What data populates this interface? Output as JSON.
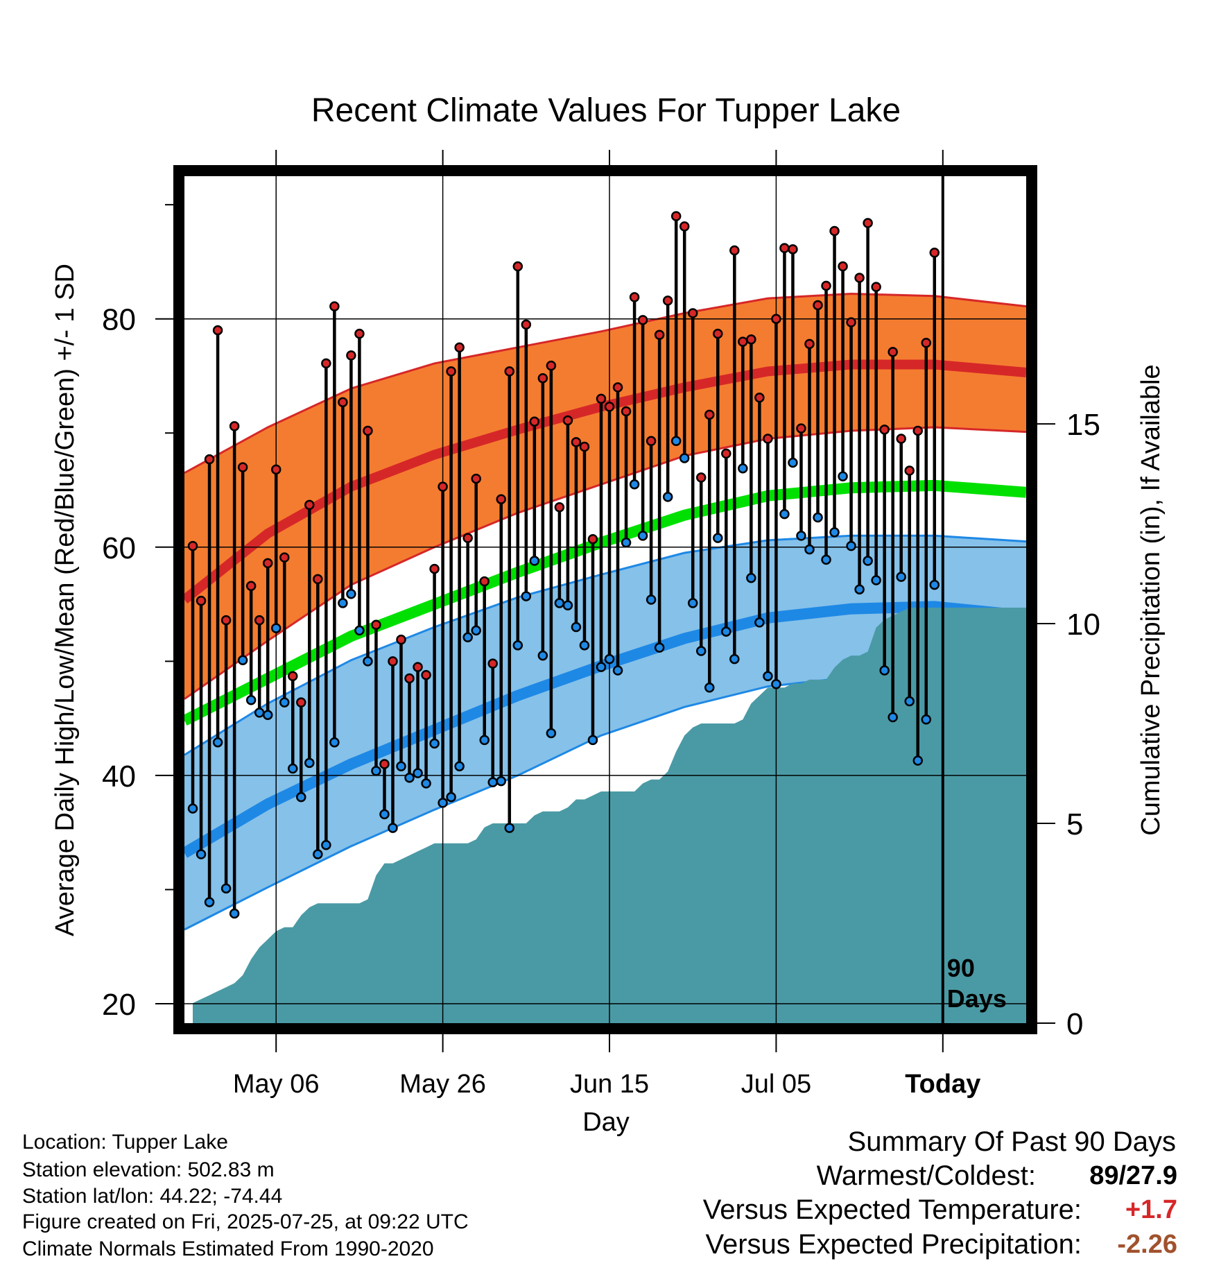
{
  "chart_data": {
    "type": "line",
    "title": "Recent Climate Values For Tupper Lake",
    "xlabel": "Day",
    "ylabel": "Average Daily High/Low/Mean (Red/Blue/Green) +/- 1 SD",
    "y2label": "Cumulative Precipitation (in), If Available",
    "ylim": [
      18.3,
      92.5
    ],
    "y_ticks": [
      "20",
      "40",
      "60",
      "80"
    ],
    "y2lim": [
      0,
      21.2
    ],
    "y2_ticks": [
      "0",
      "5",
      "10",
      "15"
    ],
    "xlim": [
      "2025-04-25",
      "2025-08-04"
    ],
    "x_ticks": [
      {
        "label": "May 06",
        "date": "2025-05-06"
      },
      {
        "label": "May 26",
        "date": "2025-05-26"
      },
      {
        "label": "Jun 15",
        "date": "2025-06-15"
      },
      {
        "label": "Jul 05",
        "date": "2025-07-05"
      },
      {
        "label": "Today",
        "date": "2025-07-25"
      }
    ],
    "grid": true,
    "today_date": "2025-07-25",
    "today_label_1": "90",
    "today_label_2": "Days",
    "normals_dates": [
      "2025-04-25",
      "2025-05-05",
      "2025-05-15",
      "2025-05-25",
      "2025-06-04",
      "2025-06-14",
      "2025-06-24",
      "2025-07-04",
      "2025-07-14",
      "2025-07-24",
      "2025-08-04"
    ],
    "normal_high": [
      55.4,
      61.2,
      65.3,
      68.1,
      70.3,
      72.3,
      74.0,
      75.4,
      76.0,
      76.0,
      75.3
    ],
    "normal_high_upper": [
      66.5,
      70.5,
      73.9,
      76.1,
      77.5,
      78.9,
      80.5,
      81.8,
      82.2,
      82.0,
      81.1
    ],
    "normal_high_lower": [
      46.7,
      51.8,
      56.7,
      60.0,
      63.0,
      65.5,
      68.0,
      69.5,
      70.2,
      70.5,
      70.1
    ],
    "normal_mean": [
      44.8,
      48.5,
      52.2,
      55.0,
      57.8,
      60.4,
      62.8,
      64.5,
      65.2,
      65.4,
      64.8
    ],
    "normal_low": [
      33.2,
      37.5,
      41.0,
      44.0,
      47.0,
      49.6,
      52.0,
      53.8,
      54.6,
      54.8,
      54.0
    ],
    "normal_low_upper": [
      41.8,
      46.3,
      50.1,
      53.0,
      55.6,
      57.6,
      59.5,
      60.6,
      61.0,
      61.0,
      60.5
    ],
    "normal_low_lower": [
      26.5,
      30.2,
      33.8,
      37.0,
      40.0,
      43.5,
      46.0,
      47.8,
      48.6,
      48.8,
      48.4
    ],
    "series": [
      {
        "name": "Red",
        "key": "high",
        "color": "#d62728",
        "values": [
          60.1,
          55.3,
          67.7,
          79.0,
          53.6,
          70.6,
          67.0,
          56.6,
          53.6,
          58.6,
          66.8,
          59.1,
          48.7,
          46.4,
          63.7,
          57.2,
          76.1,
          81.1,
          72.7,
          76.8,
          78.7,
          70.2,
          53.2,
          41.0,
          50.0,
          51.9,
          48.5,
          49.5,
          48.8,
          58.1,
          65.3,
          75.4,
          77.5,
          60.8,
          66.0,
          57.0,
          49.8,
          64.2,
          75.4,
          84.6,
          79.5,
          71.0,
          74.8,
          75.9,
          63.5,
          71.1,
          69.2,
          68.8,
          60.7,
          73.0,
          72.3,
          74.0,
          71.9,
          81.9,
          79.9,
          69.3,
          78.6,
          81.6,
          89.0,
          88.1,
          80.5,
          66.1,
          71.6,
          78.7,
          68.2,
          86.0,
          78.0,
          78.2,
          73.1,
          69.5,
          80.0,
          86.2,
          86.1,
          70.4,
          77.8,
          81.2,
          82.9,
          87.7,
          84.6,
          79.7,
          83.6,
          88.4,
          82.8,
          70.3,
          77.1,
          69.5,
          66.7,
          70.2,
          77.9,
          85.8
        ]
      },
      {
        "name": "Blue",
        "key": "low",
        "color": "#1e88e5",
        "values": [
          37.1,
          33.1,
          28.9,
          42.9,
          30.1,
          27.9,
          50.1,
          46.6,
          45.5,
          45.3,
          52.9,
          46.4,
          40.6,
          38.1,
          41.1,
          33.1,
          33.9,
          42.9,
          55.1,
          55.9,
          52.7,
          50.0,
          40.4,
          36.6,
          35.4,
          40.8,
          39.8,
          40.2,
          39.3,
          42.8,
          37.6,
          38.1,
          40.8,
          52.1,
          52.7,
          43.1,
          39.4,
          39.5,
          35.4,
          51.4,
          55.7,
          58.8,
          50.5,
          43.7,
          55.1,
          54.9,
          53.0,
          51.4,
          43.1,
          49.5,
          50.2,
          49.2,
          60.4,
          65.5,
          61.0,
          55.4,
          51.2,
          64.4,
          69.3,
          67.8,
          55.1,
          50.9,
          47.7,
          60.8,
          52.6,
          50.2,
          66.9,
          57.3,
          53.4,
          48.7,
          48.0,
          62.9,
          67.4,
          61.0,
          59.8,
          62.6,
          58.9,
          61.3,
          66.2,
          60.1,
          56.3,
          58.8,
          57.1,
          49.2,
          45.1,
          57.4,
          46.5,
          41.3,
          44.9,
          56.7
        ]
      },
      {
        "name": "Cumulative Precipitation",
        "key": "precip",
        "color": "#4a9aa5",
        "values": [
          0.5,
          0.6,
          0.7,
          0.8,
          0.9,
          1.0,
          1.2,
          1.6,
          1.9,
          2.1,
          2.3,
          2.4,
          2.4,
          2.7,
          2.9,
          3.0,
          3.0,
          3.0,
          3.0,
          3.0,
          3.0,
          3.1,
          3.7,
          4.0,
          4.0,
          4.1,
          4.2,
          4.3,
          4.4,
          4.5,
          4.5,
          4.5,
          4.5,
          4.5,
          4.6,
          4.9,
          5.0,
          5.0,
          5.0,
          5.0,
          5.0,
          5.2,
          5.3,
          5.3,
          5.3,
          5.4,
          5.6,
          5.6,
          5.7,
          5.8,
          5.8,
          5.8,
          5.8,
          5.8,
          6.0,
          6.1,
          6.1,
          6.3,
          6.8,
          7.2,
          7.4,
          7.5,
          7.5,
          7.5,
          7.5,
          7.5,
          7.6,
          8.0,
          8.2,
          8.4,
          8.4,
          8.4,
          8.5,
          8.5,
          8.6,
          8.6,
          8.6,
          8.9,
          9.1,
          9.2,
          9.2,
          9.3,
          9.9,
          10.1,
          10.2,
          10.3,
          10.4,
          10.4,
          10.4,
          10.4
        ]
      }
    ]
  },
  "footer": {
    "location": "Location: Tupper Lake",
    "elevation": "Station elevation: 502.83 m",
    "latlon": "Station lat/lon: 44.22; -74.44",
    "created": "Figure created on Fri, 2025-07-25, at 09:22 UTC",
    "normals": "Climate Normals Estimated From 1990-2020"
  },
  "summary": {
    "heading": "Summary Of Past 90 Days",
    "warmest_coldest_label": "Warmest/Coldest:",
    "warmest_coldest_value": "89/27.9",
    "temp_label": "Versus Expected Temperature:",
    "temp_value": "+1.7",
    "temp_color": "#d62728",
    "precip_label": "Versus Expected Precipitation:",
    "precip_value": "-2.26",
    "precip_color": "#a0522d"
  },
  "colors": {
    "high_band": "#f47c30",
    "high_line": "#d62728",
    "mean_line": "#00e000",
    "low_band": "#85c1e9",
    "low_line": "#1e88e5",
    "precip_fill": "#4a9aa5"
  }
}
